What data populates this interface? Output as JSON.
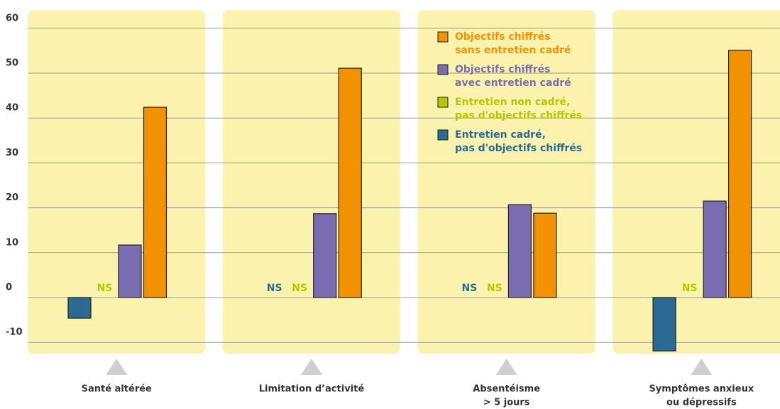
{
  "chart_data": {
    "type": "bar",
    "categories": [
      [
        "Santé altérée"
      ],
      [
        "Limitation d’activité"
      ],
      [
        "Absentéisme",
        "> 5 jours"
      ],
      [
        "Symptômes anxieux",
        "ou dépressifs"
      ]
    ],
    "series": [
      {
        "name": [
          "Entretien cadré,",
          "pas d'objectifs chiffrés"
        ],
        "color": "#2b6b93",
        "values": [
          -4.6,
          null,
          null,
          -11.9
        ],
        "value_labels": [
          null,
          "NS",
          "NS",
          null
        ]
      },
      {
        "name": [
          "Entretien non cadré,",
          "pas d'objectifs chiffrés"
        ],
        "color": "#b3c800",
        "values": [
          null,
          null,
          null,
          null
        ],
        "value_labels": [
          "NS",
          "NS",
          "NS",
          "NS"
        ]
      },
      {
        "name": [
          "Objectifs chiffrés",
          "avec entretien cadré"
        ],
        "color": "#7a6cb0",
        "values": [
          11.7,
          18.7,
          20.7,
          21.5
        ]
      },
      {
        "name": [
          "Objectifs chiffrés",
          "sans entretien cadré"
        ],
        "color": "#f39200",
        "values": [
          42.4,
          51.1,
          18.8,
          55.1
        ]
      }
    ],
    "ylim": [
      -12.5,
      64
    ],
    "yticks": [
      -10,
      0,
      10,
      20,
      30,
      40,
      50,
      60
    ],
    "grid": true
  }
}
